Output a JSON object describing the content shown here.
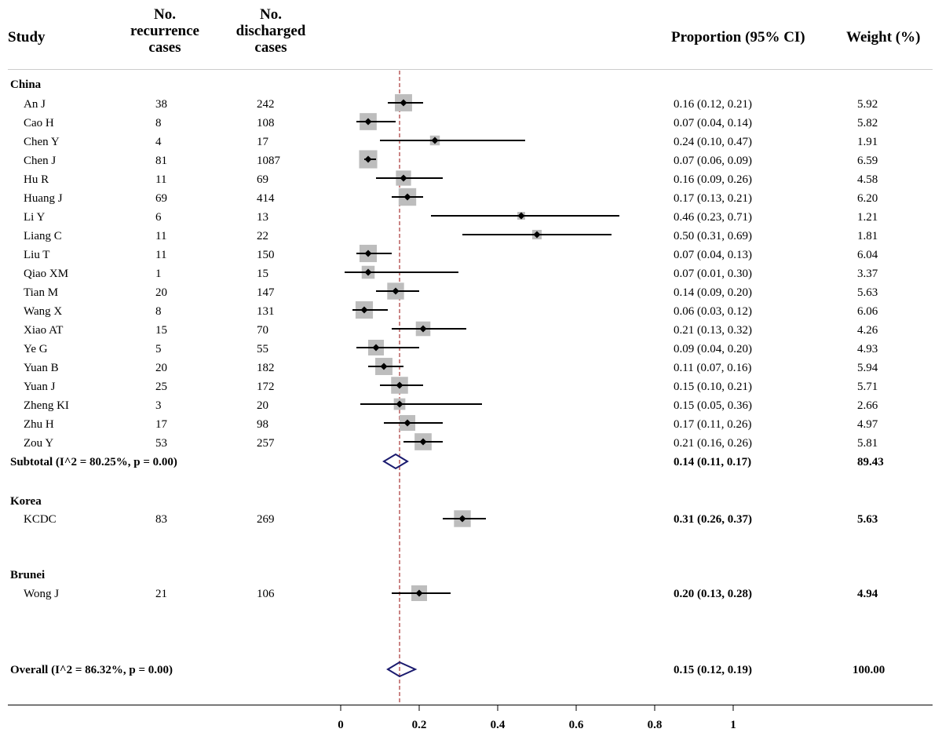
{
  "chart_data": {
    "type": "forest",
    "title": "",
    "xlabel": "",
    "ylabel": "",
    "xlim": [
      0,
      1
    ],
    "x_ticks": [
      "0",
      "0.2",
      "0.4",
      "0.6",
      "0.8",
      "1"
    ],
    "x_tick_values": [
      0,
      0.2,
      0.4,
      0.6,
      0.8,
      1
    ],
    "reference_line": 0.15,
    "headers": {
      "study": "Study",
      "recurrence": [
        "No.",
        "recurrence",
        "cases"
      ],
      "discharged": [
        "No.",
        "discharged",
        "cases"
      ],
      "proportion": "Proportion (95% CI)",
      "weight": "Weight (%)"
    },
    "groups": [
      {
        "name": "China",
        "studies": [
          {
            "study": "An J",
            "recurrence": "38",
            "discharged": "242",
            "estimate": 0.16,
            "lower": 0.12,
            "upper": 0.21,
            "ci_text": "0.16 (0.12, 0.21)",
            "weight": "5.92"
          },
          {
            "study": "Cao H",
            "recurrence": "8",
            "discharged": "108",
            "estimate": 0.07,
            "lower": 0.04,
            "upper": 0.14,
            "ci_text": "0.07 (0.04, 0.14)",
            "weight": "5.82"
          },
          {
            "study": "Chen Y",
            "recurrence": "4",
            "discharged": "17",
            "estimate": 0.24,
            "lower": 0.1,
            "upper": 0.47,
            "ci_text": "0.24 (0.10, 0.47)",
            "weight": "1.91"
          },
          {
            "study": "Chen J",
            "recurrence": "81",
            "discharged": "1087",
            "estimate": 0.07,
            "lower": 0.06,
            "upper": 0.09,
            "ci_text": "0.07 (0.06, 0.09)",
            "weight": "6.59"
          },
          {
            "study": "Hu R",
            "recurrence": "11",
            "discharged": "69",
            "estimate": 0.16,
            "lower": 0.09,
            "upper": 0.26,
            "ci_text": "0.16 (0.09, 0.26)",
            "weight": "4.58"
          },
          {
            "study": "Huang J",
            "recurrence": "69",
            "discharged": "414",
            "estimate": 0.17,
            "lower": 0.13,
            "upper": 0.21,
            "ci_text": "0.17 (0.13, 0.21)",
            "weight": "6.20"
          },
          {
            "study": "Li Y",
            "recurrence": "6",
            "discharged": "13",
            "estimate": 0.46,
            "lower": 0.23,
            "upper": 0.71,
            "ci_text": "0.46 (0.23, 0.71)",
            "weight": "1.21"
          },
          {
            "study": "Liang C",
            "recurrence": "11",
            "discharged": "22",
            "estimate": 0.5,
            "lower": 0.31,
            "upper": 0.69,
            "ci_text": "0.50 (0.31, 0.69)",
            "weight": "1.81"
          },
          {
            "study": "Liu T",
            "recurrence": "11",
            "discharged": "150",
            "estimate": 0.07,
            "lower": 0.04,
            "upper": 0.13,
            "ci_text": "0.07 (0.04, 0.13)",
            "weight": "6.04"
          },
          {
            "study": "Qiao XM",
            "recurrence": "1",
            "discharged": "15",
            "estimate": 0.07,
            "lower": 0.01,
            "upper": 0.3,
            "ci_text": "0.07 (0.01, 0.30)",
            "weight": "3.37"
          },
          {
            "study": "Tian M",
            "recurrence": "20",
            "discharged": "147",
            "estimate": 0.14,
            "lower": 0.09,
            "upper": 0.2,
            "ci_text": "0.14 (0.09, 0.20)",
            "weight": "5.63"
          },
          {
            "study": "Wang X",
            "recurrence": "8",
            "discharged": "131",
            "estimate": 0.06,
            "lower": 0.03,
            "upper": 0.12,
            "ci_text": "0.06 (0.03, 0.12)",
            "weight": "6.06"
          },
          {
            "study": "Xiao AT",
            "recurrence": "15",
            "discharged": "70",
            "estimate": 0.21,
            "lower": 0.13,
            "upper": 0.32,
            "ci_text": "0.21 (0.13, 0.32)",
            "weight": "4.26"
          },
          {
            "study": "Ye G",
            "recurrence": "5",
            "discharged": "55",
            "estimate": 0.09,
            "lower": 0.04,
            "upper": 0.2,
            "ci_text": "0.09 (0.04, 0.20)",
            "weight": "4.93"
          },
          {
            "study": "Yuan B",
            "recurrence": "20",
            "discharged": "182",
            "estimate": 0.11,
            "lower": 0.07,
            "upper": 0.16,
            "ci_text": "0.11 (0.07, 0.16)",
            "weight": "5.94"
          },
          {
            "study": "Yuan J",
            "recurrence": "25",
            "discharged": "172",
            "estimate": 0.15,
            "lower": 0.1,
            "upper": 0.21,
            "ci_text": "0.15 (0.10, 0.21)",
            "weight": "5.71"
          },
          {
            "study": "Zheng KI",
            "recurrence": "3",
            "discharged": "20",
            "estimate": 0.15,
            "lower": 0.05,
            "upper": 0.36,
            "ci_text": "0.15 (0.05, 0.36)",
            "weight": "2.66"
          },
          {
            "study": "Zhu H",
            "recurrence": "17",
            "discharged": "98",
            "estimate": 0.17,
            "lower": 0.11,
            "upper": 0.26,
            "ci_text": "0.17 (0.11, 0.26)",
            "weight": "4.97"
          },
          {
            "study": "Zou Y",
            "recurrence": "53",
            "discharged": "257",
            "estimate": 0.21,
            "lower": 0.16,
            "upper": 0.26,
            "ci_text": "0.21 (0.16, 0.26)",
            "weight": "5.81"
          }
        ],
        "subtotal": {
          "label": "Subtotal  (I^2 = 80.25%, p = 0.00)",
          "estimate": 0.14,
          "lower": 0.11,
          "upper": 0.17,
          "ci_text": "0.14 (0.11, 0.17)",
          "weight": "89.43"
        }
      },
      {
        "name": "Korea",
        "studies": [
          {
            "study": "KCDC",
            "recurrence": "83",
            "discharged": "269",
            "estimate": 0.31,
            "lower": 0.26,
            "upper": 0.37,
            "ci_text": "0.31 (0.26, 0.37)",
            "weight": "5.63"
          }
        ]
      },
      {
        "name": "Brunei",
        "studies": [
          {
            "study": "Wong J",
            "recurrence": "21",
            "discharged": "106",
            "estimate": 0.2,
            "lower": 0.13,
            "upper": 0.28,
            "ci_text": "0.20 (0.13, 0.28)",
            "weight": "4.94"
          }
        ]
      }
    ],
    "overall": {
      "label": "Overall  (I^2 = 86.32%, p = 0.00)",
      "estimate": 0.15,
      "lower": 0.12,
      "upper": 0.19,
      "ci_text": "0.15 (0.12, 0.19)",
      "weight": "100.00"
    },
    "colors": {
      "box": "#bdbdbd",
      "line": "#000000",
      "diamond": "#1a1a6e",
      "reference": "#a83232"
    }
  }
}
